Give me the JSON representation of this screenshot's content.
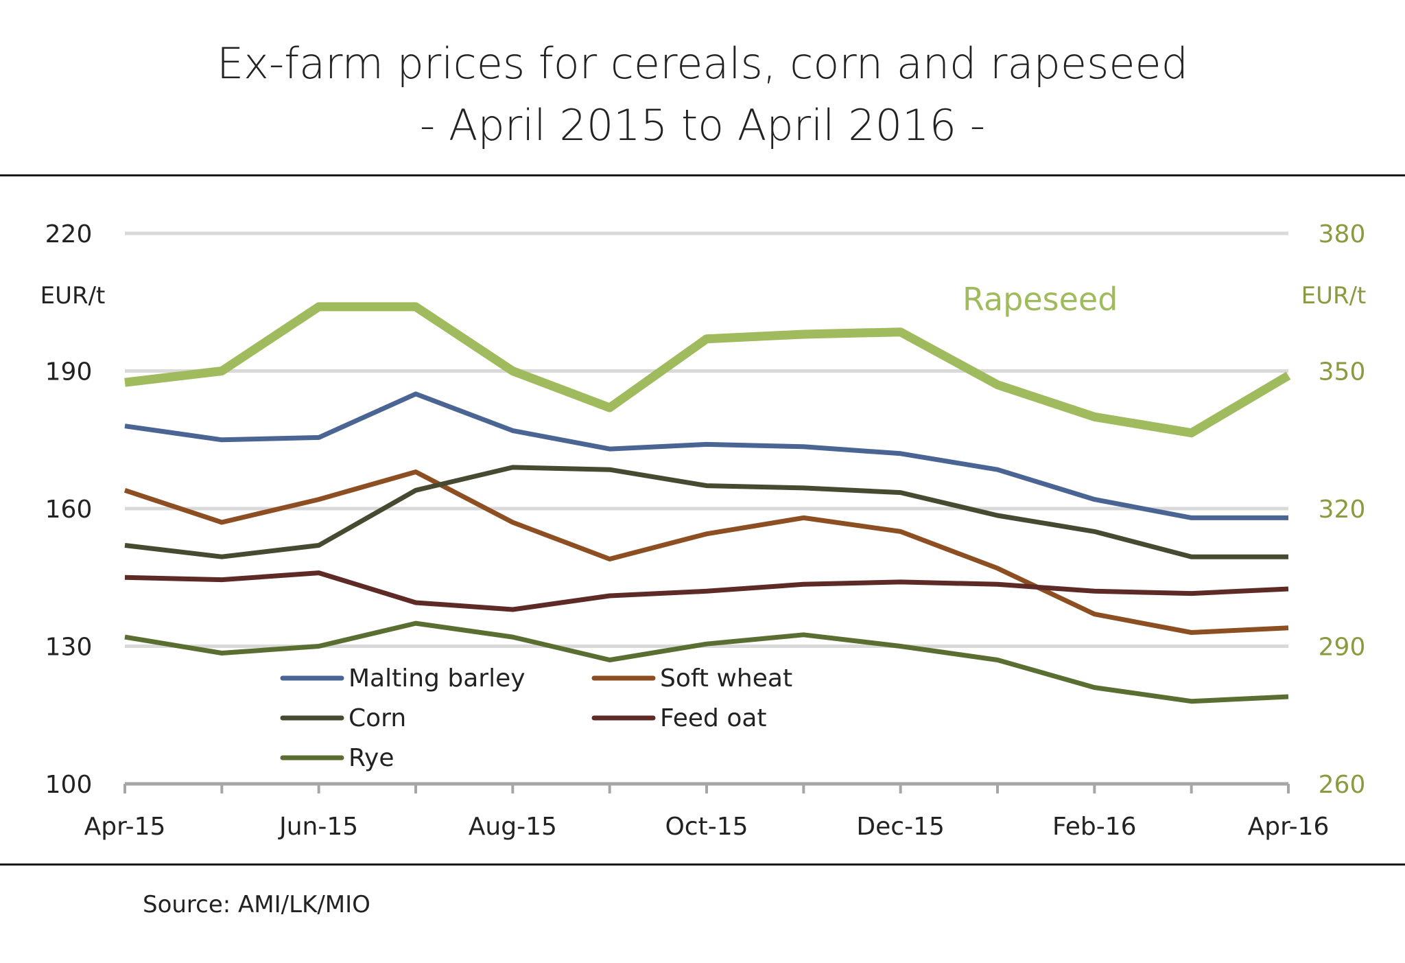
{
  "title_line1": "Ex-farm prices for cereals, corn and rapeseed",
  "title_line2": "- April 2015 to April 2016 -",
  "source": "Source: AMI/LK/MIO",
  "chart_data": {
    "type": "line",
    "categories": [
      "Apr-15",
      "May-15",
      "Jun-15",
      "Jul-15",
      "Aug-15",
      "Sep-15",
      "Oct-15",
      "Nov-15",
      "Dec-15",
      "Jan-16",
      "Feb-16",
      "Mar-16",
      "Apr-16"
    ],
    "x_tick_labels": [
      "Apr-15",
      "Jun-15",
      "Aug-15",
      "Oct-15",
      "Dec-15",
      "Feb-16",
      "Apr-16"
    ],
    "left_axis": {
      "unit": "EUR/t",
      "ylim": [
        100,
        220
      ],
      "ticks": [
        100,
        130,
        160,
        190,
        220
      ]
    },
    "right_axis": {
      "unit": "EUR/t",
      "ylim": [
        260,
        380
      ],
      "ticks": [
        260,
        290,
        320,
        350,
        380
      ],
      "color": "#8a9a3f"
    },
    "grid": true,
    "legend_position": "lower-left",
    "series": [
      {
        "name": "Malting barley",
        "axis": "left",
        "color": "#4a6494",
        "values": [
          178,
          175,
          175.5,
          185,
          177,
          173,
          174,
          173.5,
          172,
          168.5,
          162,
          158,
          158
        ]
      },
      {
        "name": "Soft wheat",
        "axis": "left",
        "color": "#8d4f22",
        "values": [
          164,
          157,
          162,
          168,
          157,
          149,
          154.5,
          158,
          155,
          147,
          137,
          133,
          134
        ]
      },
      {
        "name": "Corn",
        "axis": "left",
        "color": "#474a30",
        "values": [
          152,
          149.5,
          152,
          164,
          169,
          168.5,
          165,
          164.5,
          163.5,
          158.5,
          155,
          149.5,
          149.5
        ]
      },
      {
        "name": "Feed oat",
        "axis": "left",
        "color": "#5e2a26",
        "values": [
          145,
          144.5,
          146,
          139.5,
          138,
          141,
          142,
          143.5,
          144,
          143.5,
          142,
          141.5,
          142.5
        ]
      },
      {
        "name": "Rye",
        "axis": "left",
        "color": "#5a6e32",
        "values": [
          132,
          128.5,
          130,
          135,
          132,
          127,
          130.5,
          132.5,
          130,
          127,
          121,
          118,
          119
        ]
      },
      {
        "name": "Rapeseed",
        "axis": "right",
        "color": "#a0bb5e",
        "values": [
          347.5,
          350,
          364,
          364,
          350,
          342,
          357,
          358,
          358.5,
          347,
          340,
          336.5,
          349
        ]
      }
    ],
    "annotations": [
      {
        "text": "Rapeseed",
        "color": "#a0bb5e"
      }
    ]
  }
}
